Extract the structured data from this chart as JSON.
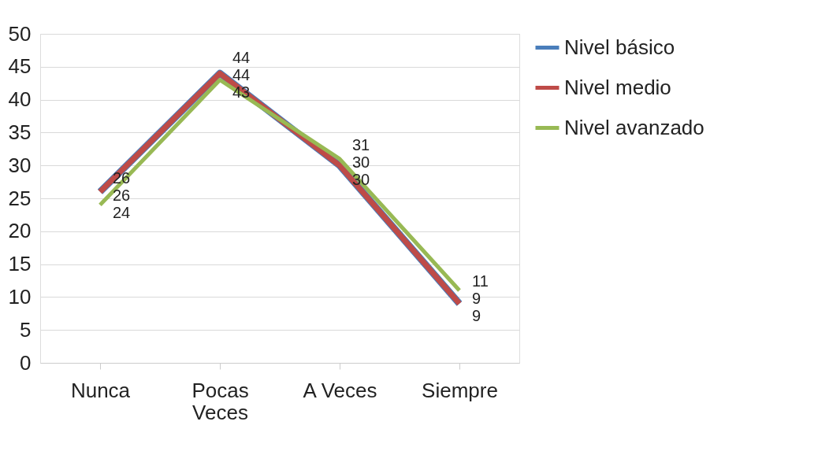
{
  "chart_data": {
    "type": "line",
    "categories": [
      "Nunca",
      "Pocas Veces",
      "A Veces",
      "Siempre"
    ],
    "series": [
      {
        "name": "Nivel básico",
        "color": "#4a7ebb",
        "values": [
          26,
          44,
          30,
          9
        ]
      },
      {
        "name": "Nivel medio",
        "color": "#be4b48",
        "values": [
          26,
          44,
          30,
          9
        ]
      },
      {
        "name": "Nivel avanzado",
        "color": "#98b954",
        "values": [
          24,
          43,
          31,
          11
        ]
      }
    ],
    "ylim": [
      0,
      50
    ],
    "yticks": [
      0,
      5,
      10,
      15,
      20,
      25,
      30,
      35,
      40,
      45,
      50
    ],
    "grid": "y",
    "legend": "right",
    "data_labels": true,
    "marker": "none",
    "line_style": "solid"
  }
}
